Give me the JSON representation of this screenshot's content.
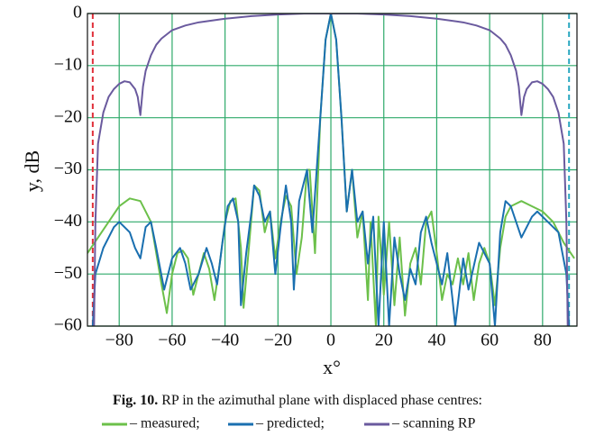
{
  "chart_data": {
    "type": "line",
    "xlabel": "x°",
    "ylabel": "y, dB",
    "caption_label": "Fig. 10.",
    "caption": "RP in the azimuthal plane with displaced phase centres:",
    "xlim": [
      -92,
      93
    ],
    "ylim": [
      -60,
      0
    ],
    "xticks": [
      {
        "value": -80,
        "label": "−80"
      },
      {
        "value": -60,
        "label": "−60"
      },
      {
        "value": -40,
        "label": "−40"
      },
      {
        "value": -20,
        "label": "−20"
      },
      0,
      20,
      40,
      60,
      80
    ],
    "yticks": [
      {
        "value": -60,
        "label": "−60"
      },
      {
        "value": -50,
        "label": "−50"
      },
      {
        "value": -40,
        "label": "−40"
      },
      {
        "value": -30,
        "label": "−30"
      },
      {
        "value": -20,
        "label": "−20"
      },
      {
        "value": -10,
        "label": "−10"
      },
      0
    ],
    "grid": true,
    "grid_color": "#2eaa6a",
    "reference_lines": [
      {
        "x": -90,
        "color": "#e0303a"
      },
      {
        "x": 90,
        "color": "#2aa8c0"
      }
    ],
    "series": [
      {
        "name": "– measured;",
        "color": "#6cc04a",
        "x": [
          -92,
          -88,
          -84,
          -80,
          -76,
          -72,
          -68,
          -64,
          -62,
          -60,
          -58,
          -56,
          -54,
          -52,
          -50,
          -48,
          -46,
          -44,
          -42,
          -40,
          -38,
          -36,
          -34,
          -33,
          -31,
          -29,
          -27,
          -25,
          -23,
          -21,
          -19,
          -17,
          -15,
          -13,
          -11,
          -9,
          -8,
          -6,
          -4,
          -2,
          0,
          2,
          4,
          6,
          8,
          10,
          12,
          14,
          15,
          17,
          18,
          20,
          22,
          24,
          26,
          28,
          30,
          32,
          34,
          36,
          38,
          40,
          42,
          44,
          46,
          48,
          50,
          52,
          54,
          56,
          58,
          60,
          62,
          64,
          66,
          68,
          72,
          76,
          80,
          84,
          88,
          92
        ],
        "values": [
          -46,
          -43,
          -40,
          -37,
          -35.5,
          -36,
          -40,
          -52,
          -57.5,
          -50,
          -46,
          -45.5,
          -47,
          -54,
          -50,
          -46,
          -49,
          -55,
          -48,
          -40,
          -36,
          -35.5,
          -45,
          -56.5,
          -45,
          -33,
          -34,
          -42,
          -38,
          -47,
          -40,
          -35,
          -37,
          -50,
          -43,
          -30,
          -30,
          -46,
          -20,
          -5,
          0,
          -5,
          -20,
          -38,
          -30,
          -43,
          -38,
          -55,
          -40,
          -60,
          -39,
          -54,
          -40,
          -56,
          -43,
          -58,
          -48,
          -45,
          -52,
          -40,
          -38,
          -46,
          -55,
          -50,
          -52,
          -47,
          -52,
          -46,
          -55,
          -48,
          -45,
          -48,
          -56,
          -45,
          -39,
          -37,
          -36,
          -37,
          -38,
          -40,
          -44,
          -47
        ]
      },
      {
        "name": "– predicted;",
        "color": "#1a6fb0",
        "x": [
          -90,
          -89,
          -86,
          -82,
          -80,
          -76,
          -74,
          -72,
          -70,
          -68,
          -66,
          -63,
          -60,
          -57,
          -55,
          -53,
          -50,
          -47,
          -45,
          -43,
          -41,
          -39,
          -37,
          -35,
          -34,
          -32,
          -30,
          -29,
          -27,
          -25,
          -23,
          -21,
          -19,
          -17,
          -15,
          -14,
          -12,
          -9,
          -7,
          -4,
          -2,
          0,
          2,
          4,
          6,
          8,
          10,
          12,
          14,
          16,
          18,
          20,
          22,
          24,
          26,
          28,
          30,
          32,
          34,
          36,
          38,
          40,
          42,
          44,
          46,
          47,
          50,
          52,
          56,
          58,
          60,
          62,
          64,
          66,
          68,
          70,
          72,
          76,
          78,
          82,
          86,
          89,
          90
        ],
        "values": [
          -60,
          -50,
          -45,
          -41,
          -40,
          -42,
          -45,
          -47,
          -41,
          -40,
          -45,
          -53,
          -47,
          -45,
          -48,
          -53,
          -50,
          -45,
          -48,
          -52,
          -44,
          -37,
          -35.5,
          -40,
          -56,
          -46,
          -38,
          -33,
          -35,
          -40,
          -38,
          -50,
          -41,
          -33,
          -40,
          -53,
          -36,
          -30,
          -42,
          -20,
          -5,
          0,
          -5,
          -20,
          -38,
          -30,
          -40,
          -38,
          -48,
          -39,
          -60,
          -40,
          -60,
          -43,
          -50,
          -55,
          -49,
          -52,
          -42,
          -39,
          -44,
          -48,
          -52,
          -46,
          -55,
          -60,
          -47,
          -53,
          -44,
          -46,
          -48,
          -60,
          -42,
          -36,
          -37,
          -40,
          -43,
          -39,
          -38,
          -40,
          -42,
          -50,
          -60
        ]
      },
      {
        "name": "– scanning RP",
        "color": "#6a5a9e",
        "x": [
          -89.5,
          -89,
          -88,
          -86,
          -84,
          -82,
          -80,
          -78,
          -76,
          -74,
          -73,
          -72,
          -71,
          -70,
          -68,
          -66,
          -64,
          -60,
          -55,
          -50,
          -40,
          -30,
          -20,
          -10,
          0,
          10,
          20,
          30,
          40,
          50,
          55,
          60,
          64,
          66,
          68,
          70,
          71,
          72,
          73,
          74,
          76,
          78,
          80,
          82,
          84,
          86,
          88,
          89,
          89.5
        ],
        "values": [
          -60,
          -40,
          -25,
          -19,
          -16,
          -14.5,
          -13.5,
          -13,
          -13.2,
          -14.5,
          -16,
          -19.5,
          -14,
          -11,
          -8,
          -6,
          -4.8,
          -3.2,
          -2.3,
          -1.7,
          -1,
          -0.5,
          -0.2,
          0,
          0,
          0,
          -0.2,
          -0.5,
          -1,
          -1.7,
          -2.3,
          -3.2,
          -4.8,
          -6,
          -8,
          -11,
          -14,
          -19.5,
          -16,
          -14.5,
          -13.2,
          -13,
          -13.5,
          -14.5,
          -16,
          -19,
          -25,
          -40,
          -60
        ]
      }
    ]
  }
}
